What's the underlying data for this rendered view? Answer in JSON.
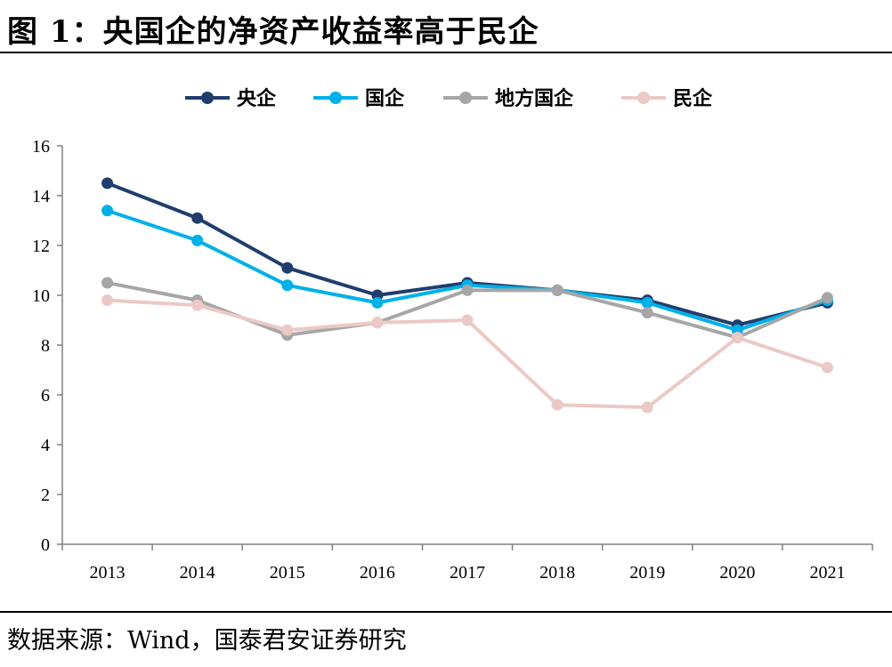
{
  "header": {
    "title": "图 1：央国企的净资产收益率高于民企"
  },
  "footer": {
    "source": "数据来源：Wind，国泰君安证券研究"
  },
  "chart_data": {
    "type": "line",
    "title": "",
    "xlabel": "",
    "ylabel": "",
    "categories": [
      "2013",
      "2014",
      "2015",
      "2016",
      "2017",
      "2018",
      "2019",
      "2020",
      "2021"
    ],
    "ylim": [
      0,
      16
    ],
    "yticks": [
      0,
      2,
      4,
      6,
      8,
      10,
      12,
      14,
      16
    ],
    "grid": false,
    "legend_position": "top",
    "series": [
      {
        "name": "央企",
        "color": "#1f3e6e",
        "values": [
          14.5,
          13.1,
          11.1,
          10.0,
          10.5,
          10.2,
          9.8,
          8.8,
          9.7
        ]
      },
      {
        "name": "国企",
        "color": "#00b0e8",
        "values": [
          13.4,
          12.2,
          10.4,
          9.7,
          10.4,
          10.2,
          9.7,
          8.6,
          9.8
        ]
      },
      {
        "name": "地方国企",
        "color": "#a6a6a6",
        "values": [
          10.5,
          9.8,
          8.4,
          8.9,
          10.2,
          10.2,
          9.3,
          8.3,
          9.9
        ]
      },
      {
        "name": "民企",
        "color": "#ebc9c7",
        "values": [
          9.8,
          9.6,
          8.6,
          8.9,
          9.0,
          5.6,
          5.5,
          8.3,
          7.1
        ]
      }
    ]
  }
}
